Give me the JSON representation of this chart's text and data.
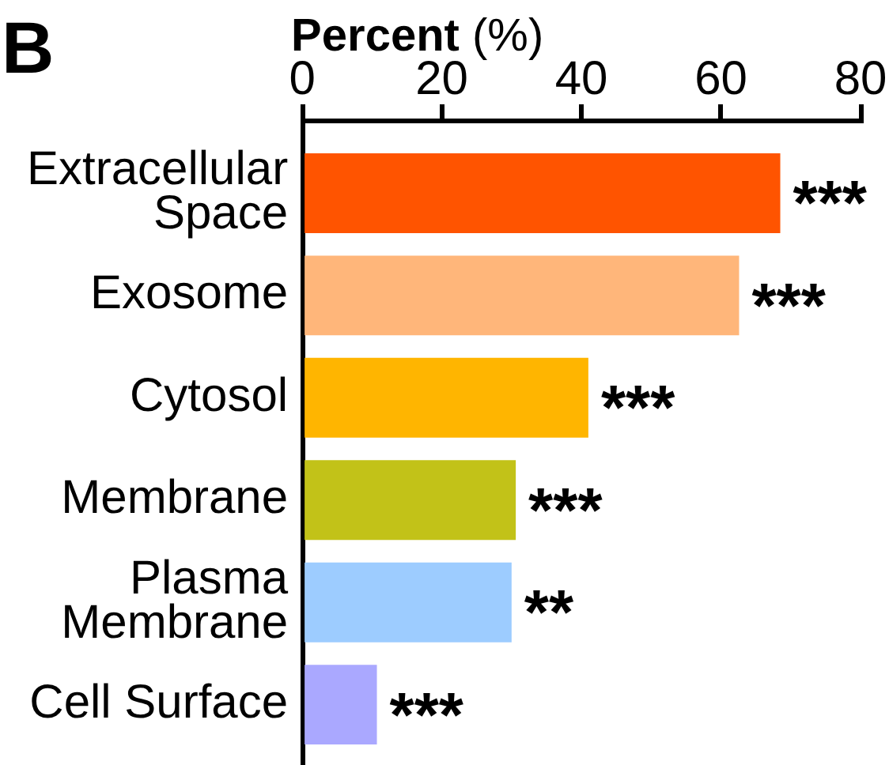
{
  "chart_data": {
    "type": "bar",
    "orientation": "horizontal",
    "title": "B",
    "xlabel": "Percent (%)",
    "categories": [
      "Extracellular Space",
      "Exosome",
      "Cytosol",
      "Membrane",
      "Plasma Membrane",
      "Cell Surface"
    ],
    "values": [
      68.5,
      62.6,
      41,
      30.6,
      30,
      10.7
    ],
    "colors": [
      "#ff5400",
      "#ffb67a",
      "#ffb500",
      "#c2c218",
      "#9dccff",
      "#aaa8ff"
    ],
    "xlim": [
      0,
      80
    ],
    "xticks": [
      0,
      20,
      40,
      60,
      80
    ],
    "legend": false,
    "annotations": [
      {
        "text": "***",
        "x": 68.5,
        "y": "Extracellular Space"
      },
      {
        "text": "***",
        "x": 62.6,
        "y": "Exosome"
      },
      {
        "text": "***",
        "x": 41,
        "y": "Cytosol"
      },
      {
        "text": "***",
        "x": 30.6,
        "y": "Membrane"
      },
      {
        "text": "**",
        "x": 30,
        "y": "Plasma Membrane"
      },
      {
        "text": "***",
        "x": 10.7,
        "y": "Cell Surface"
      }
    ]
  }
}
